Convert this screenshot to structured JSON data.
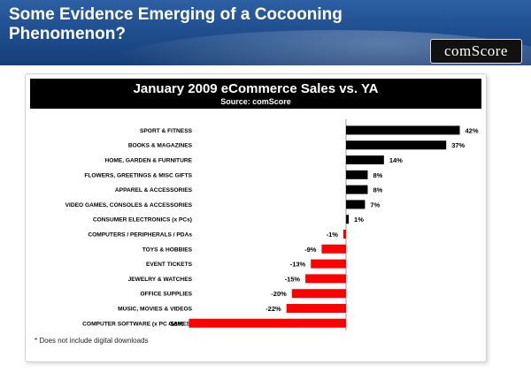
{
  "slide": {
    "title": "Some Evidence Emerging of a Cocooning Phenomenon?",
    "logo_text": "comScore",
    "footnote": "* Does not include digital downloads"
  },
  "colors": {
    "positive": "#000000",
    "negative": "#ff0000",
    "header_bg": "#1e4c8c"
  },
  "chart_data": {
    "type": "bar",
    "orientation": "horizontal",
    "title": "January 2009 eCommerce Sales vs. YA",
    "subtitle": "Source: comScore",
    "categories": [
      "SPORT & FITNESS",
      "BOOKS & MAGAZINES",
      "HOME, GARDEN & FURNITURE",
      "FLOWERS, GREETINGS & MISC GIFTS",
      "APPAREL & ACCESSORIES",
      "VIDEO GAMES, CONSOLES & ACCESSORIES",
      "CONSUMER ELECTRONICS (x PCs)",
      "COMPUTERS / PERIPHERALS / PDAs",
      "TOYS & HOBBIES",
      "EVENT TICKETS",
      "JEWELRY & WATCHES",
      "OFFICE SUPPLIES",
      "MUSIC, MOVIES & VIDEOS",
      "COMPUTER SOFTWARE (x PC GAMES)"
    ],
    "values": [
      42,
      37,
      14,
      8,
      8,
      7,
      1,
      -1,
      -9,
      -13,
      -15,
      -20,
      -22,
      -58
    ],
    "labels": [
      "42%",
      "37%",
      "14%",
      "8%",
      "8%",
      "7%",
      "1%",
      "-1%",
      "-9%",
      "-13%",
      "-15%",
      "-20%",
      "-22%",
      "-58%"
    ],
    "xlim": [
      -60,
      60
    ],
    "grid": false,
    "legend": "none"
  }
}
